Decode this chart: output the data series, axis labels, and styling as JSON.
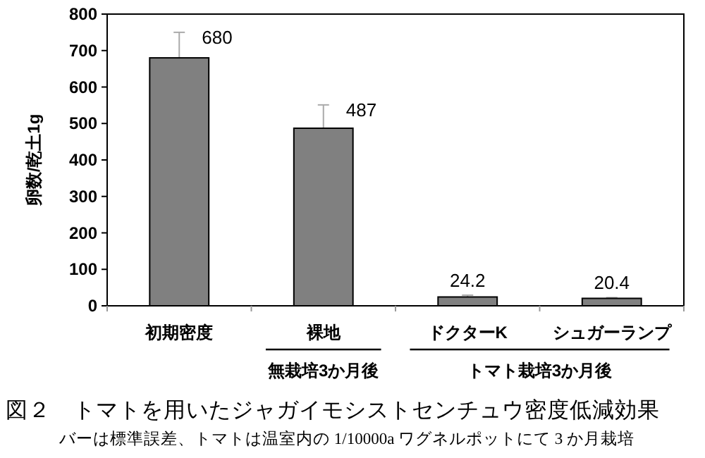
{
  "chart_data": {
    "type": "bar",
    "title": "図２　トマトを用いたジャガイモシストセンチュウ密度低減効果",
    "subtitle": "バーは標準誤差、トマトは温室内の 1/10000a ワグネルポットにて 3 か月栽培",
    "ylabel": "卵数/乾土1g",
    "categories": [
      "初期密度",
      "裸地",
      "ドクターK",
      "シュガーランプ"
    ],
    "values": [
      680,
      487,
      24.2,
      20.4
    ],
    "errors": [
      70,
      64,
      5,
      2
    ],
    "color": "#808080",
    "ylim": [
      0,
      800
    ],
    "yticks": [
      0,
      100,
      200,
      300,
      400,
      500,
      600,
      700,
      800
    ],
    "data_labels": true,
    "annotations": [
      "無栽培3か月後",
      "トマト栽培3か月後"
    ]
  }
}
